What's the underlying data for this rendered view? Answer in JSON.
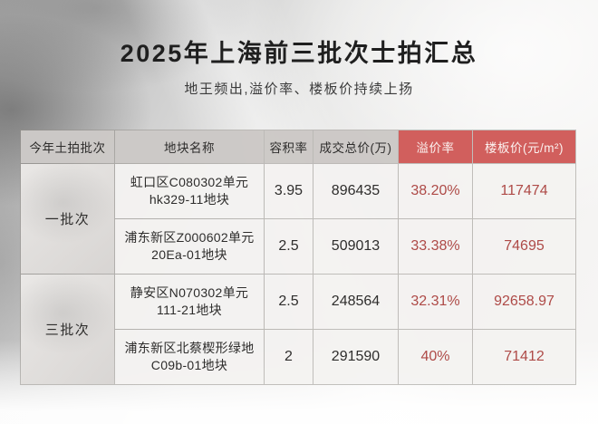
{
  "page": {
    "title": "2025年上海前三批次士拍汇总",
    "subtitle": "地王频出,溢价率、楼板价持续上扬"
  },
  "colors": {
    "accent_red_bg": "#d15f5d",
    "accent_red_text": "#ae4a47",
    "header_gray_bg": "#cdcac8"
  },
  "table": {
    "headers": [
      "今年土拍批次",
      "地块名称",
      "容积率",
      "成交总价(万)",
      "溢价率",
      "楼板价(元/m²)"
    ],
    "groups": [
      {
        "label": "一批次"
      },
      {
        "label": "三批次"
      }
    ],
    "rows": [
      {
        "name_line1": "虹口区C080302单元",
        "name_line2": "hk329-11地块",
        "far": "3.95",
        "total_price": "896435",
        "premium": "38.20%",
        "floor_price": "117474"
      },
      {
        "name_line1": "浦东新区Z000602单元",
        "name_line2": "20Ea-01地块",
        "far": "2.5",
        "total_price": "509013",
        "premium": "33.38%",
        "floor_price": "74695"
      },
      {
        "name_line1": "静安区N070302单元",
        "name_line2": "111-21地块",
        "far": "2.5",
        "total_price": "248564",
        "premium": "32.31%",
        "floor_price": "92658.97"
      },
      {
        "name_line1": "浦东新区北蔡楔形绿地",
        "name_line2": "C09b-01地块",
        "far": "2",
        "total_price": "291590",
        "premium": "40%",
        "floor_price": "71412"
      }
    ]
  },
  "chart_data": {
    "type": "table",
    "title": "2025年上海前三批次士拍汇总",
    "subtitle": "地王频出,溢价率、楼板价持续上扬",
    "columns": [
      "今年土拍批次",
      "地块名称",
      "容积率",
      "成交总价(万)",
      "溢价率",
      "楼板价(元/m²)"
    ],
    "rows": [
      [
        "一批次",
        "虹口区C080302单元 hk329-11地块",
        "3.95",
        "896435",
        "38.20%",
        "117474"
      ],
      [
        "一批次",
        "浦东新区Z000602单元 20Ea-01地块",
        "2.5",
        "509013",
        "33.38%",
        "74695"
      ],
      [
        "三批次",
        "静安区N070302单元 111-21地块",
        "2.5",
        "248564",
        "32.31%",
        "92658.97"
      ],
      [
        "三批次",
        "浦东新区北蔡楔形绿地 C09b-01地块",
        "2",
        "291590",
        "40%",
        "71412"
      ]
    ]
  }
}
